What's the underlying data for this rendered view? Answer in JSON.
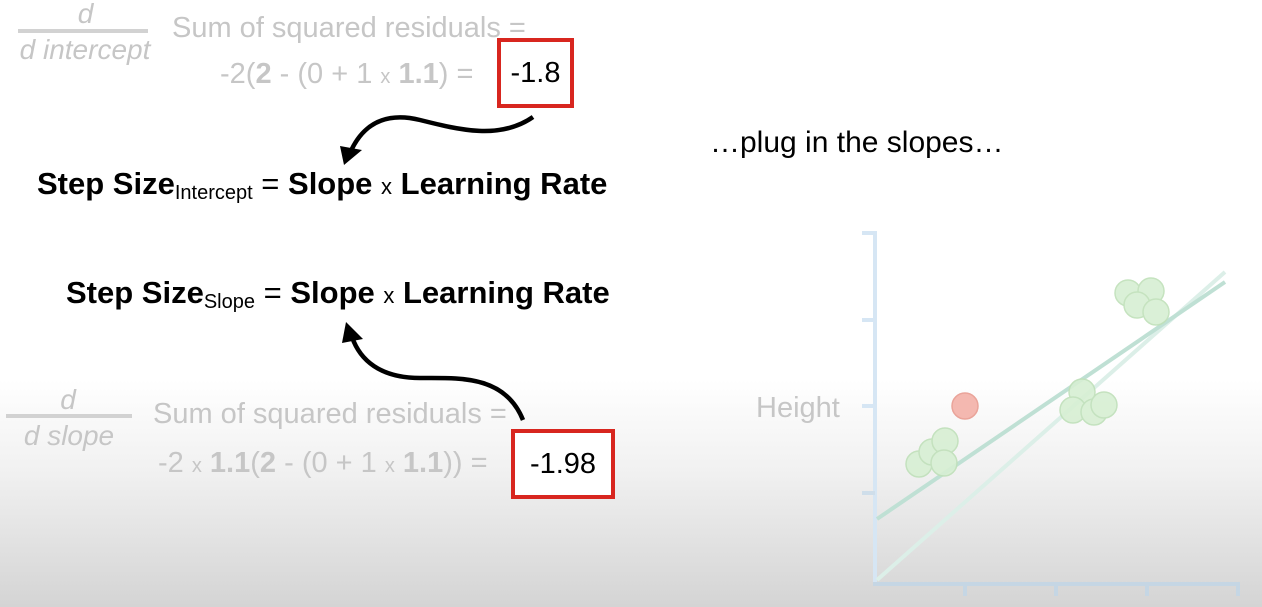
{
  "top_derivative": {
    "d": "d",
    "wrt": "d intercept",
    "label": "Sum of squared residuals =",
    "expr": {
      "p1": "-2(",
      "b1": "2",
      "p2": " - (0 + 1 ",
      "x": "x",
      "p3": " ",
      "b2": "1.1",
      "p4": ") ="
    },
    "result": "-1.8"
  },
  "step_intercept": {
    "lead": "Step Size",
    "sub": "Intercept",
    "equals": "=",
    "slope": "Slope",
    "times": "x",
    "rate": "Learning Rate"
  },
  "step_slope": {
    "lead": "Step Size",
    "sub": "Slope",
    "equals": "=",
    "slope": "Slope",
    "times": "x",
    "rate": "Learning Rate"
  },
  "bottom_derivative": {
    "d": "d",
    "wrt": "d slope",
    "label": "Sum of squared residuals =",
    "expr": {
      "p1": "-2 ",
      "x1": "x",
      "p2": " ",
      "b1": "1.1",
      "p3": "(",
      "b2": "2",
      "p4": " - (0 + 1 ",
      "x2": "x",
      "p5": " ",
      "b3": "1.1",
      "p6": ")) ="
    },
    "result": "-1.98"
  },
  "plug_text": "…plug in the slopes…",
  "plot": {
    "ylabel": "Height",
    "axis_color": "#d3e4f3",
    "point_color": "#c8e6c3",
    "highlight_point_color": "#f3b9b2",
    "line_color": "#bfe3d8"
  }
}
